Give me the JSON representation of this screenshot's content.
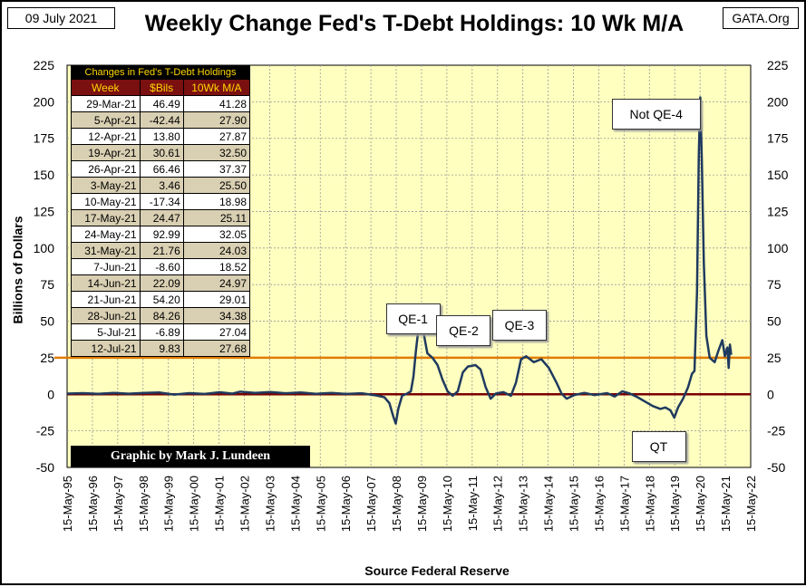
{
  "header": {
    "date": "09 July 2021",
    "source_tag": "GATA.Org",
    "title": "Weekly Change Fed's T-Debt Holdings: 10 Wk M/A"
  },
  "axes": {
    "ylabel": "Billions   of   Dollars",
    "xlabel": "Source Federal Reserve"
  },
  "table": {
    "caption": "Changes in Fed's T-Debt Holdings",
    "headers": [
      "Week",
      "$Bils",
      "10Wk M/A"
    ],
    "rows": [
      [
        "29-Mar-21",
        "46.49",
        "41.28"
      ],
      [
        "5-Apr-21",
        "-42.44",
        "27.90"
      ],
      [
        "12-Apr-21",
        "13.80",
        "27.87"
      ],
      [
        "19-Apr-21",
        "30.61",
        "32.50"
      ],
      [
        "26-Apr-21",
        "66.46",
        "37.37"
      ],
      [
        "3-May-21",
        "3.46",
        "25.50"
      ],
      [
        "10-May-21",
        "-17.34",
        "18.98"
      ],
      [
        "17-May-21",
        "24.47",
        "25.11"
      ],
      [
        "24-May-21",
        "92.99",
        "32.05"
      ],
      [
        "31-May-21",
        "21.76",
        "24.03"
      ],
      [
        "7-Jun-21",
        "-8.60",
        "18.52"
      ],
      [
        "14-Jun-21",
        "22.09",
        "24.97"
      ],
      [
        "21-Jun-21",
        "54.20",
        "29.01"
      ],
      [
        "28-Jun-21",
        "84.26",
        "34.38"
      ],
      [
        "5-Jul-21",
        "-6.89",
        "27.04"
      ],
      [
        "12-Jul-21",
        "9.83",
        "27.68"
      ]
    ]
  },
  "credit": "Graphic by Mark J. Lundeen",
  "chart_data": {
    "type": "line",
    "x_tick_labels": [
      "15-May-95",
      "15-May-96",
      "15-May-97",
      "15-May-98",
      "15-May-99",
      "15-May-00",
      "15-May-01",
      "15-May-02",
      "15-May-03",
      "15-May-04",
      "15-May-05",
      "15-May-06",
      "15-May-07",
      "15-May-08",
      "15-May-09",
      "15-May-10",
      "15-May-11",
      "15-May-12",
      "15-May-13",
      "15-May-14",
      "15-May-15",
      "15-May-16",
      "15-May-17",
      "15-May-18",
      "15-May-19",
      "15-May-20",
      "15-May-21",
      "15-May-22"
    ],
    "y_ticks": [
      -50,
      -25,
      0,
      25,
      50,
      75,
      100,
      125,
      150,
      175,
      200,
      225
    ],
    "ylim": [
      -50,
      225
    ],
    "xlim": [
      1995.37,
      2022.37
    ],
    "grid": true,
    "reference_lines": [
      {
        "value": 25,
        "color": "#e07b00"
      },
      {
        "value": 0,
        "color": "#7b0000"
      }
    ],
    "annotations": [
      {
        "text": "QE-1",
        "x": 2009.0,
        "y": 52
      },
      {
        "text": "QE-2",
        "x": 2011.0,
        "y": 44
      },
      {
        "text": "QE-3",
        "x": 2013.2,
        "y": 48
      },
      {
        "text": "Not QE-4",
        "x": 2018.6,
        "y": 192
      },
      {
        "text": "QT",
        "x": 2018.7,
        "y": -35
      }
    ],
    "series": [
      {
        "color": "#1f3a5f",
        "points": [
          [
            1995.37,
            0.5
          ],
          [
            1996.0,
            0.8
          ],
          [
            1996.6,
            0.3
          ],
          [
            1997.2,
            1.0
          ],
          [
            1997.8,
            0.4
          ],
          [
            1998.4,
            0.9
          ],
          [
            1999.0,
            1.3
          ],
          [
            1999.6,
            -0.2
          ],
          [
            2000.2,
            0.8
          ],
          [
            2000.8,
            0.2
          ],
          [
            2001.4,
            1.4
          ],
          [
            2001.9,
            0.5
          ],
          [
            2002.2,
            1.8
          ],
          [
            2002.8,
            0.9
          ],
          [
            2003.4,
            1.6
          ],
          [
            2004.0,
            0.7
          ],
          [
            2004.6,
            1.2
          ],
          [
            2005.2,
            0.3
          ],
          [
            2005.8,
            0.9
          ],
          [
            2006.4,
            0.2
          ],
          [
            2007.0,
            0.7
          ],
          [
            2007.6,
            -0.8
          ],
          [
            2007.9,
            -2.0
          ],
          [
            2008.1,
            -6.0
          ],
          [
            2008.25,
            -15.0
          ],
          [
            2008.35,
            -20.0
          ],
          [
            2008.45,
            -10.0
          ],
          [
            2008.6,
            -1.0
          ],
          [
            2008.8,
            0.5
          ],
          [
            2008.95,
            2.0
          ],
          [
            2009.05,
            12.0
          ],
          [
            2009.15,
            30.0
          ],
          [
            2009.25,
            45.0
          ],
          [
            2009.35,
            50.0
          ],
          [
            2009.45,
            42.0
          ],
          [
            2009.6,
            28.0
          ],
          [
            2009.8,
            25.0
          ],
          [
            2010.0,
            20.0
          ],
          [
            2010.2,
            10.0
          ],
          [
            2010.4,
            2.0
          ],
          [
            2010.6,
            -1.0
          ],
          [
            2010.8,
            2.0
          ],
          [
            2011.0,
            15.0
          ],
          [
            2011.2,
            19.0
          ],
          [
            2011.5,
            20.0
          ],
          [
            2011.7,
            17.0
          ],
          [
            2011.9,
            5.0
          ],
          [
            2012.1,
            -3.0
          ],
          [
            2012.3,
            0.5
          ],
          [
            2012.6,
            1.5
          ],
          [
            2012.9,
            -1.0
          ],
          [
            2013.1,
            8.0
          ],
          [
            2013.3,
            24.0
          ],
          [
            2013.5,
            26.0
          ],
          [
            2013.8,
            22.0
          ],
          [
            2014.1,
            24.0
          ],
          [
            2014.4,
            18.0
          ],
          [
            2014.7,
            8.0
          ],
          [
            2014.9,
            0.5
          ],
          [
            2015.1,
            -3.0
          ],
          [
            2015.4,
            -0.5
          ],
          [
            2015.8,
            1.0
          ],
          [
            2016.2,
            -0.5
          ],
          [
            2016.7,
            0.8
          ],
          [
            2017.0,
            -1.5
          ],
          [
            2017.3,
            2.0
          ],
          [
            2017.6,
            0.5
          ],
          [
            2017.9,
            -2.0
          ],
          [
            2018.2,
            -5.0
          ],
          [
            2018.5,
            -8.0
          ],
          [
            2018.8,
            -10.0
          ],
          [
            2019.0,
            -9.0
          ],
          [
            2019.2,
            -11.0
          ],
          [
            2019.35,
            -16.0
          ],
          [
            2019.5,
            -9.0
          ],
          [
            2019.7,
            -3.0
          ],
          [
            2019.9,
            5.0
          ],
          [
            2020.05,
            14.0
          ],
          [
            2020.15,
            16.0
          ],
          [
            2020.25,
            70.0
          ],
          [
            2020.32,
            165.0
          ],
          [
            2020.38,
            203.0
          ],
          [
            2020.44,
            160.0
          ],
          [
            2020.52,
            90.0
          ],
          [
            2020.62,
            40.0
          ],
          [
            2020.75,
            25.0
          ],
          [
            2020.95,
            22.0
          ],
          [
            2021.1,
            30.0
          ],
          [
            2021.25,
            37.0
          ],
          [
            2021.35,
            26.0
          ],
          [
            2021.45,
            32.0
          ],
          [
            2021.5,
            18.0
          ],
          [
            2021.55,
            34.0
          ],
          [
            2021.6,
            27.0
          ]
        ]
      }
    ]
  }
}
